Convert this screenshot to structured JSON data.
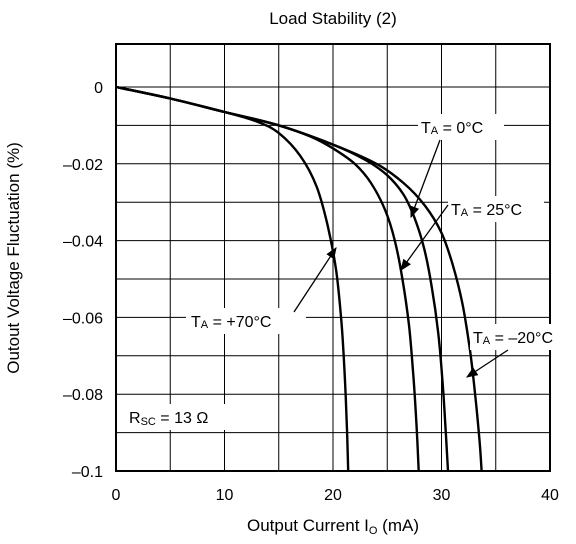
{
  "chart_data": {
    "type": "line",
    "title": "Load Stability (2)",
    "xlabel": {
      "main": "Output Current I",
      "sub": "O",
      "unit": " (mA)"
    },
    "ylabel": "Outout Voltage Fluctuation (%)",
    "xlim": [
      0,
      40
    ],
    "ylim": [
      -0.1,
      0.01
    ],
    "xticks": [
      "0",
      "10",
      "20",
      "30",
      "40"
    ],
    "yticks": [
      "0",
      "–0.02",
      "–0.04",
      "–0.06",
      "–0.08",
      "–0.1"
    ],
    "grid": true,
    "annotation": {
      "main": "R",
      "sub": "SC",
      "rest": " = 13 Ω"
    },
    "series": [
      {
        "name": "T_A = +70°C",
        "label": {
          "main": "T",
          "sub": "A",
          "rest": " = +70°C"
        },
        "points": [
          [
            0,
            0
          ],
          [
            5,
            -0.003
          ],
          [
            10,
            -0.0065
          ],
          [
            13,
            -0.009
          ],
          [
            15,
            -0.012
          ],
          [
            17,
            -0.018
          ],
          [
            18.5,
            -0.026
          ],
          [
            19.5,
            -0.036
          ],
          [
            20.3,
            -0.048
          ],
          [
            20.8,
            -0.062
          ],
          [
            21.1,
            -0.076
          ],
          [
            21.3,
            -0.09
          ],
          [
            21.4,
            -0.1
          ]
        ]
      },
      {
        "name": "T_A = 25°C",
        "label": {
          "main": "T",
          "sub": "A",
          "rest": " = 25°C"
        },
        "points": [
          [
            0,
            0
          ],
          [
            5,
            -0.003
          ],
          [
            10,
            -0.0065
          ],
          [
            15,
            -0.01
          ],
          [
            18,
            -0.013
          ],
          [
            20,
            -0.016
          ],
          [
            22,
            -0.02
          ],
          [
            23.5,
            -0.025
          ],
          [
            24.8,
            -0.032
          ],
          [
            25.7,
            -0.04
          ],
          [
            26.4,
            -0.05
          ],
          [
            27,
            -0.062
          ],
          [
            27.4,
            -0.075
          ],
          [
            27.7,
            -0.088
          ],
          [
            27.9,
            -0.1
          ]
        ]
      },
      {
        "name": "T_A = 0°C",
        "label": {
          "main": "T",
          "sub": "A",
          "rest": " = 0°C"
        },
        "points": [
          [
            0,
            0
          ],
          [
            5,
            -0.003
          ],
          [
            10,
            -0.0065
          ],
          [
            15,
            -0.01
          ],
          [
            20,
            -0.015
          ],
          [
            23,
            -0.019
          ],
          [
            25,
            -0.023
          ],
          [
            26.5,
            -0.028
          ],
          [
            27.5,
            -0.034
          ],
          [
            28.4,
            -0.042
          ],
          [
            29.1,
            -0.052
          ],
          [
            29.7,
            -0.064
          ],
          [
            30.1,
            -0.077
          ],
          [
            30.4,
            -0.09
          ],
          [
            30.6,
            -0.1
          ]
        ]
      },
      {
        "name": "T_A = –20°C",
        "label": {
          "main": "T",
          "sub": "A",
          "rest": " = –20°C"
        },
        "points": [
          [
            0,
            0
          ],
          [
            5,
            -0.003
          ],
          [
            10,
            -0.0065
          ],
          [
            15,
            -0.01
          ],
          [
            20,
            -0.015
          ],
          [
            24,
            -0.02
          ],
          [
            26.5,
            -0.025
          ],
          [
            28.5,
            -0.031
          ],
          [
            30,
            -0.038
          ],
          [
            31,
            -0.046
          ],
          [
            31.9,
            -0.056
          ],
          [
            32.6,
            -0.068
          ],
          [
            33.1,
            -0.08
          ],
          [
            33.5,
            -0.092
          ],
          [
            33.7,
            -0.1
          ]
        ]
      }
    ]
  }
}
